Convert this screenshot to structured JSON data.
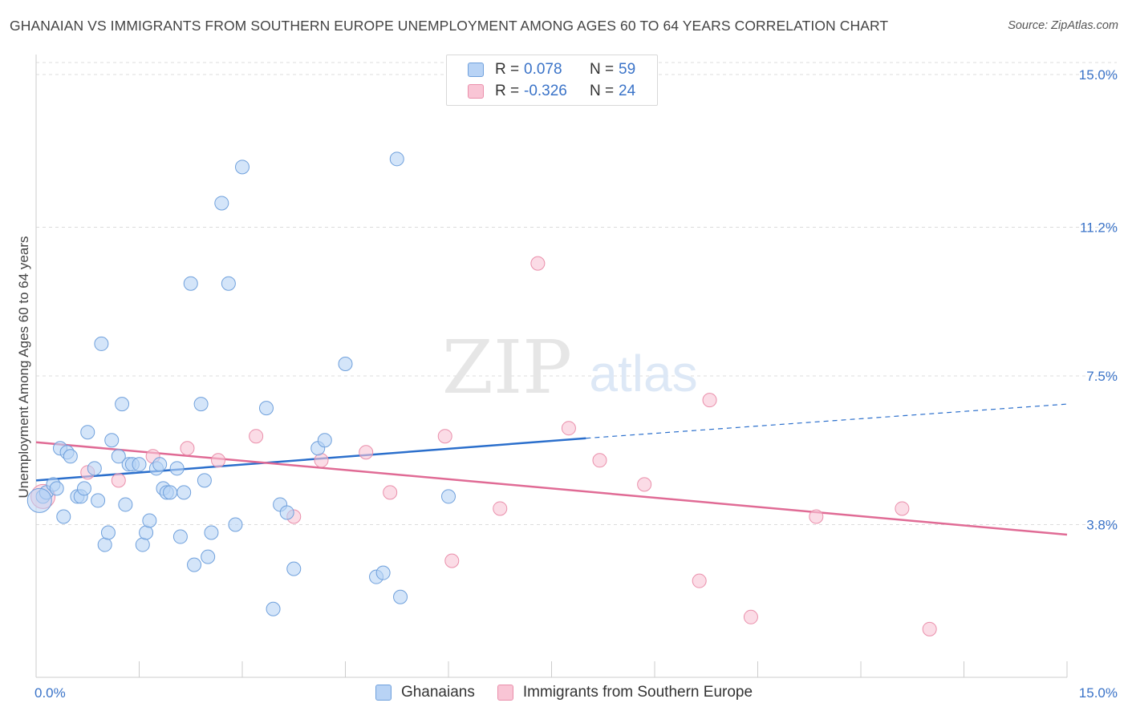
{
  "header": {
    "title": "GHANAIAN VS IMMIGRANTS FROM SOUTHERN EUROPE UNEMPLOYMENT AMONG AGES 60 TO 64 YEARS CORRELATION CHART",
    "source": "Source: ZipAtlas.com"
  },
  "watermark": {
    "zip": "ZIP",
    "atlas": "atlas"
  },
  "legend": {
    "rows": [
      {
        "r_label": "R =",
        "r_value": "0.078",
        "n_label": "N =",
        "n_value": "59"
      },
      {
        "r_label": "R =",
        "r_value": "-0.326",
        "n_label": "N =",
        "n_value": "24"
      }
    ]
  },
  "colors": {
    "blue_fill": "#b8d3f5",
    "blue_stroke": "#6fa0dc",
    "blue_line": "#2b6fcc",
    "pink_fill": "#f9c5d5",
    "pink_stroke": "#ea8fab",
    "pink_line": "#e06b95",
    "tick_text": "#3a73c8",
    "grid": "#dcdcdc"
  },
  "chart_data": {
    "type": "scatter",
    "title": "GHANAIAN VS IMMIGRANTS FROM SOUTHERN EUROPE UNEMPLOYMENT AMONG AGES 60 TO 64 YEARS CORRELATION CHART",
    "xlabel": "",
    "ylabel": "Unemployment Among Ages 60 to 64 years",
    "xlim": [
      0,
      15
    ],
    "ylim": [
      0,
      15.3
    ],
    "x_tick_labels": [
      "0.0%",
      "15.0%"
    ],
    "y_ticks": [
      3.8,
      7.5,
      11.2,
      15.0
    ],
    "y_tick_labels": [
      "3.8%",
      "7.5%",
      "11.2%",
      "15.0%"
    ],
    "grid": true,
    "legend_position": "top-center",
    "series": [
      {
        "name": "Ghanaians",
        "color": "#b8d3f5",
        "points": [
          [
            0.1,
            4.5
          ],
          [
            0.15,
            4.6
          ],
          [
            0.25,
            4.8
          ],
          [
            0.3,
            4.7
          ],
          [
            0.35,
            5.7
          ],
          [
            0.4,
            4.0
          ],
          [
            0.45,
            5.6
          ],
          [
            0.5,
            5.5
          ],
          [
            0.6,
            4.5
          ],
          [
            0.65,
            4.5
          ],
          [
            0.7,
            4.7
          ],
          [
            0.75,
            6.1
          ],
          [
            0.85,
            5.2
          ],
          [
            0.9,
            4.4
          ],
          [
            0.95,
            8.3
          ],
          [
            1.0,
            3.3
          ],
          [
            1.05,
            3.6
          ],
          [
            1.1,
            5.9
          ],
          [
            1.2,
            5.5
          ],
          [
            1.25,
            6.8
          ],
          [
            1.3,
            4.3
          ],
          [
            1.35,
            5.3
          ],
          [
            1.4,
            5.3
          ],
          [
            1.5,
            5.3
          ],
          [
            1.55,
            3.3
          ],
          [
            1.6,
            3.6
          ],
          [
            1.65,
            3.9
          ],
          [
            1.75,
            5.2
          ],
          [
            1.8,
            5.3
          ],
          [
            1.85,
            4.7
          ],
          [
            1.9,
            4.6
          ],
          [
            1.95,
            4.6
          ],
          [
            2.05,
            5.2
          ],
          [
            2.1,
            3.5
          ],
          [
            2.15,
            4.6
          ],
          [
            2.25,
            9.8
          ],
          [
            2.3,
            2.8
          ],
          [
            2.4,
            6.8
          ],
          [
            2.45,
            4.9
          ],
          [
            2.5,
            3.0
          ],
          [
            2.55,
            3.6
          ],
          [
            2.7,
            11.8
          ],
          [
            2.8,
            9.8
          ],
          [
            2.9,
            3.8
          ],
          [
            3.0,
            12.7
          ],
          [
            3.35,
            6.7
          ],
          [
            3.45,
            1.7
          ],
          [
            3.55,
            4.3
          ],
          [
            3.65,
            4.1
          ],
          [
            3.75,
            2.7
          ],
          [
            4.1,
            5.7
          ],
          [
            4.2,
            5.9
          ],
          [
            4.5,
            7.8
          ],
          [
            4.95,
            2.5
          ],
          [
            5.05,
            2.6
          ],
          [
            5.25,
            12.9
          ],
          [
            5.3,
            2.0
          ],
          [
            6.0,
            4.5
          ],
          [
            0.05,
            4.4
          ]
        ]
      },
      {
        "name": "Immigrants from Southern Europe",
        "color": "#f9c5d5",
        "points": [
          [
            0.1,
            4.5
          ],
          [
            0.75,
            5.1
          ],
          [
            1.2,
            4.9
          ],
          [
            1.7,
            5.5
          ],
          [
            2.2,
            5.7
          ],
          [
            2.65,
            5.4
          ],
          [
            3.2,
            6.0
          ],
          [
            3.75,
            4.0
          ],
          [
            4.15,
            5.4
          ],
          [
            4.8,
            5.6
          ],
          [
            5.15,
            4.6
          ],
          [
            5.95,
            6.0
          ],
          [
            6.05,
            2.9
          ],
          [
            6.75,
            4.2
          ],
          [
            7.3,
            10.3
          ],
          [
            7.75,
            6.2
          ],
          [
            8.2,
            5.4
          ],
          [
            8.85,
            4.8
          ],
          [
            9.65,
            2.4
          ],
          [
            9.8,
            6.9
          ],
          [
            10.4,
            1.5
          ],
          [
            11.35,
            4.0
          ],
          [
            12.6,
            4.2
          ],
          [
            13.0,
            1.2
          ]
        ]
      }
    ],
    "trendlines": [
      {
        "series": "Ghanaians",
        "from": [
          0,
          4.9
        ],
        "to": [
          8.0,
          5.95
        ],
        "dashed_to": [
          15.0,
          6.8
        ]
      },
      {
        "series": "Immigrants from Southern Europe",
        "from": [
          0,
          5.85
        ],
        "to": [
          15.0,
          3.55
        ]
      }
    ]
  },
  "bottom_legend": {
    "items": [
      {
        "label": "Ghanaians"
      },
      {
        "label": "Immigrants from Southern Europe"
      }
    ]
  }
}
